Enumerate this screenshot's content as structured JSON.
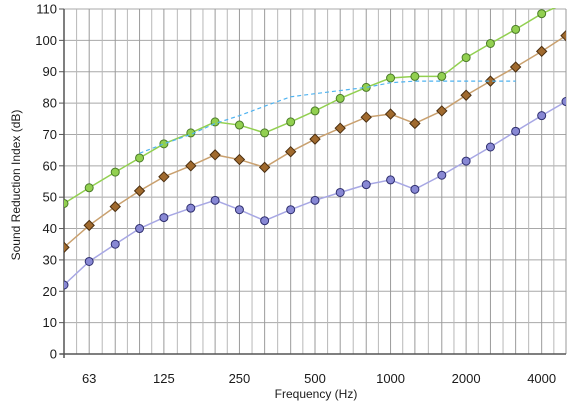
{
  "chart_data": {
    "type": "line",
    "xlabel": "Frequency (Hz)",
    "ylabel": "Sound Reduction Index (dB)",
    "x_scale": "log",
    "ylim": [
      0,
      110
    ],
    "y_ticks": [
      0,
      10,
      20,
      30,
      40,
      50,
      60,
      70,
      80,
      90,
      100,
      110
    ],
    "x_tick_values": [
      63,
      125,
      250,
      500,
      1000,
      2000,
      4000
    ],
    "x_tick_labels": [
      "63",
      "125",
      "250",
      "500",
      "1000",
      "2000",
      "4000"
    ],
    "grid": true,
    "x": [
      50,
      63,
      80,
      100,
      125,
      160,
      200,
      250,
      315,
      400,
      500,
      630,
      800,
      1000,
      1250,
      1600,
      2000,
      2500,
      3150,
      4000,
      5000
    ],
    "series": [
      {
        "values": [
          48,
          53,
          58,
          62.5,
          67,
          70.5,
          74,
          73,
          70.5,
          74,
          77.5,
          81.5,
          85,
          88,
          88.5,
          88.5,
          94.5,
          99,
          103.5,
          108.5,
          112
        ],
        "color": "#92d050",
        "marker": "circle",
        "marker_fill": "#92d050",
        "marker_stroke": "#4a7a28"
      },
      {
        "values": [
          34,
          41,
          47,
          52,
          56.5,
          60,
          63.5,
          62,
          59.5,
          64.5,
          68.5,
          72,
          75.5,
          76.5,
          73.5,
          77.5,
          82.5,
          87,
          91.5,
          96.5,
          101.5
        ],
        "color": "#c9a06e",
        "marker": "diamond",
        "marker_fill": "#a06a2e",
        "marker_stroke": "#4a2e10"
      },
      {
        "values": [
          22,
          29.5,
          35,
          40,
          43.5,
          46.5,
          49,
          46,
          42.5,
          46,
          49,
          51.5,
          54,
          55.5,
          52.5,
          57,
          61.5,
          66,
          71,
          76,
          80.5
        ],
        "color": "#a7a7e4",
        "marker": "circle",
        "marker_fill": "#8888d4",
        "marker_stroke": "#2e2e6e"
      },
      {
        "x": [
          100,
          125,
          160,
          200,
          250,
          315,
          400,
          500,
          630,
          800,
          1000,
          1250,
          1600,
          2000,
          2500,
          3150
        ],
        "values": [
          64,
          67,
          70,
          73.5,
          76,
          79,
          82,
          83,
          84,
          85,
          86.5,
          87,
          87,
          87,
          87,
          87
        ],
        "color": "#4fb3f0",
        "dashed": true,
        "marker": "none"
      }
    ]
  }
}
